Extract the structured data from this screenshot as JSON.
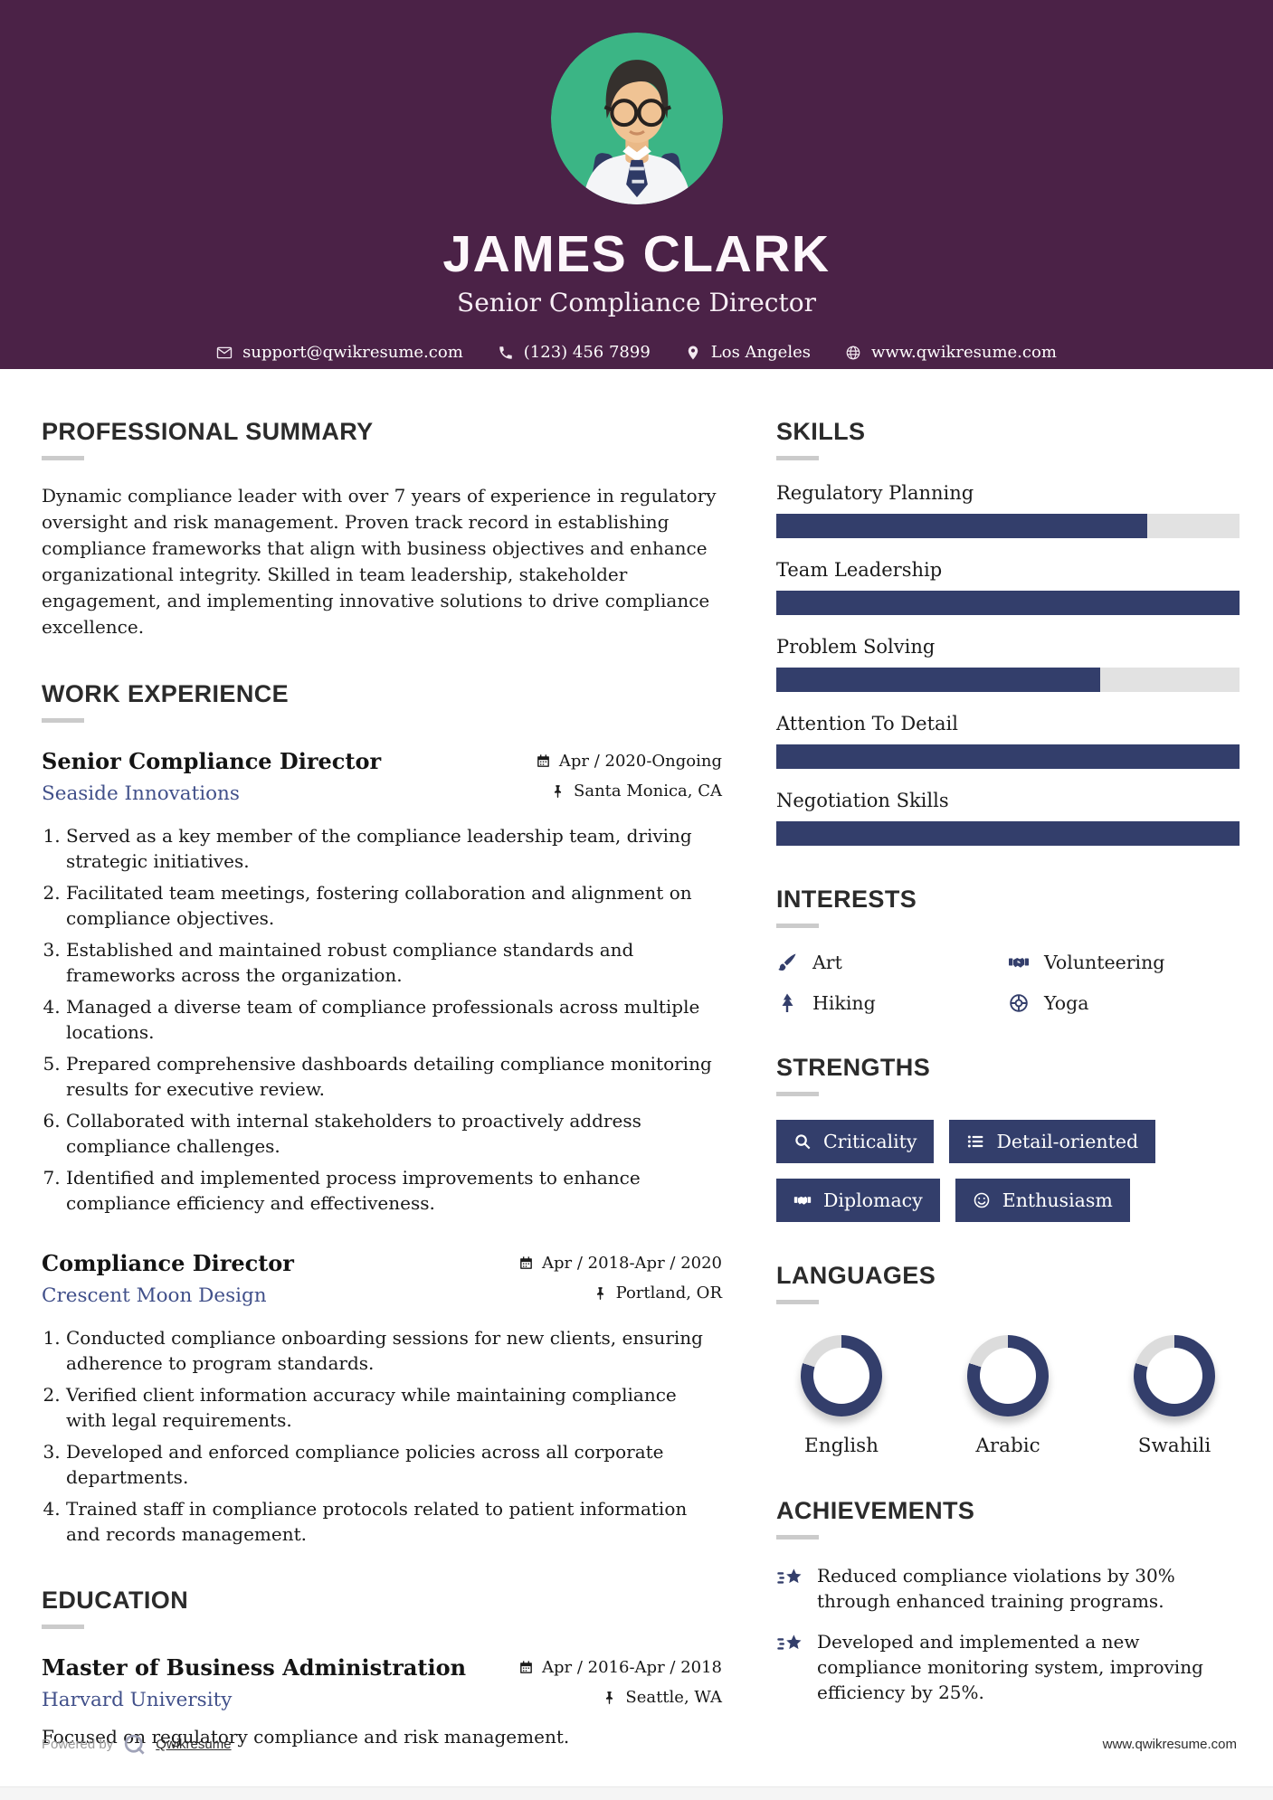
{
  "colors": {
    "accent": "#333e6b",
    "header_bg": "#4b2247",
    "photo_bg": "#3bb585",
    "link": "#41508a",
    "bar_track": "#e2e2e2"
  },
  "header": {
    "name": "JAMES CLARK",
    "title": "Senior Compliance Director",
    "contacts": [
      {
        "icon": "envelope-icon",
        "text": "support@qwikresume.com"
      },
      {
        "icon": "phone-icon",
        "text": "(123) 456 7899"
      },
      {
        "icon": "location-pin-icon",
        "text": "Los Angeles"
      },
      {
        "icon": "globe-icon",
        "text": "www.qwikresume.com"
      }
    ]
  },
  "summary": {
    "heading": "PROFESSIONAL SUMMARY",
    "body": "Dynamic compliance leader with over 7 years of experience in regulatory oversight and risk management. Proven track record in establishing compliance frameworks that align with business objectives and enhance organizational integrity. Skilled in team leadership, stakeholder engagement, and implementing innovative solutions to drive compliance excellence."
  },
  "work": {
    "heading": "WORK EXPERIENCE",
    "jobs": [
      {
        "title": "Senior Compliance Director",
        "company": "Seaside Innovations",
        "date": "Apr / 2020-Ongoing",
        "location": "Santa Monica, CA",
        "bullets": [
          "Served as a key member of the compliance leadership team, driving strategic initiatives.",
          "Facilitated team meetings, fostering collaboration and alignment on compliance objectives.",
          "Established and maintained robust compliance standards and frameworks across the organization.",
          "Managed a diverse team of compliance professionals across multiple locations.",
          "Prepared comprehensive dashboards detailing compliance monitoring results for executive review.",
          "Collaborated with internal stakeholders to proactively address compliance challenges.",
          "Identified and implemented process improvements to enhance compliance efficiency and effectiveness."
        ]
      },
      {
        "title": "Compliance Director",
        "company": "Crescent Moon Design",
        "date": "Apr / 2018-Apr / 2020",
        "location": "Portland, OR",
        "bullets": [
          "Conducted compliance onboarding sessions for new clients, ensuring adherence to program standards.",
          "Verified client information accuracy while maintaining compliance with legal requirements.",
          "Developed and enforced compliance policies across all corporate departments.",
          "Trained staff in compliance protocols related to patient information and records management."
        ]
      }
    ]
  },
  "education": {
    "heading": "EDUCATION",
    "degree": "Master of Business Administration",
    "school": "Harvard University",
    "date": "Apr / 2016-Apr / 2018",
    "location": "Seattle, WA",
    "note": "Focused on regulatory compliance and risk management."
  },
  "skills": {
    "heading": "SKILLS",
    "items": [
      {
        "label": "Regulatory Planning",
        "percent": 80
      },
      {
        "label": "Team Leadership",
        "percent": 100
      },
      {
        "label": "Problem Solving",
        "percent": 70
      },
      {
        "label": "Attention To Detail",
        "percent": 100
      },
      {
        "label": "Negotiation Skills",
        "percent": 100
      }
    ]
  },
  "interests": {
    "heading": "INTERESTS",
    "items": [
      {
        "icon": "paintbrush-icon",
        "label": "Art"
      },
      {
        "icon": "handshake-icon",
        "label": "Volunteering"
      },
      {
        "icon": "tree-icon",
        "label": "Hiking"
      },
      {
        "icon": "wheel-icon",
        "label": "Yoga"
      }
    ]
  },
  "strengths": {
    "heading": "STRENGTHS",
    "items": [
      {
        "icon": "search-icon",
        "label": "Criticality"
      },
      {
        "icon": "list-icon",
        "label": "Detail-oriented"
      },
      {
        "icon": "handshake-icon",
        "label": "Diplomacy"
      },
      {
        "icon": "smiley-icon",
        "label": "Enthusiasm"
      }
    ]
  },
  "languages": {
    "heading": "LANGUAGES",
    "items": [
      {
        "label": "English",
        "percent": 80
      },
      {
        "label": "Arabic",
        "percent": 80
      },
      {
        "label": "Swahili",
        "percent": 80
      }
    ]
  },
  "achievements": {
    "heading": "ACHIEVEMENTS",
    "items": [
      {
        "icon": "shooting-star-icon",
        "text": "Reduced compliance violations by 30% through enhanced training programs."
      },
      {
        "icon": "shooting-star-icon",
        "text": "Developed and implemented a new compliance monitoring system, improving efficiency by 25%."
      }
    ]
  },
  "footer": {
    "powered_by": "Powered by",
    "brand": "Qwikresume",
    "site": "www.qwikresume.com"
  }
}
